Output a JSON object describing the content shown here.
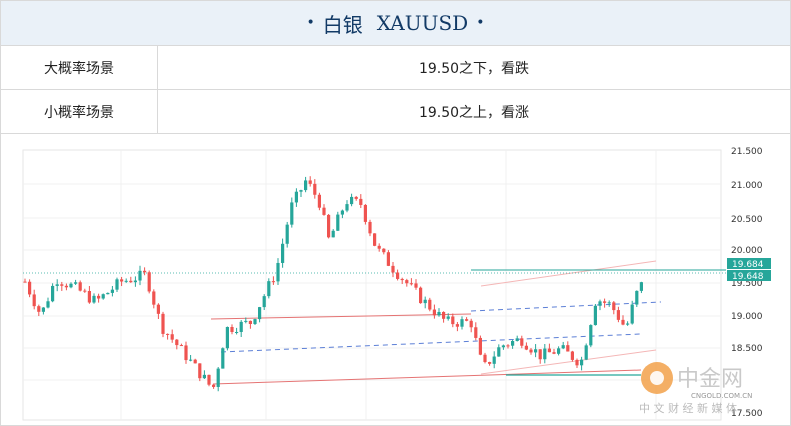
{
  "title": {
    "name": "白银",
    "symbol": "XAUUSD"
  },
  "scenarios": [
    {
      "label": "大概率场景",
      "value": "19.50之下，看跌"
    },
    {
      "label": "小概率场景",
      "value": "19.50之上，看涨"
    }
  ],
  "chart_data": {
    "type": "candlestick",
    "ylim": [
      17.5,
      21.5
    ],
    "y_ticks": [
      "21.500",
      "21.000",
      "20.500",
      "20.000",
      "19.500",
      "19.000",
      "18.500",
      "17.500"
    ],
    "price_tags": [
      "19.684",
      "19.648"
    ],
    "colors": {
      "up": "#26a69a",
      "down": "#ef5350",
      "tag": "#26a69a"
    }
  },
  "watermark": {
    "brand": "中金网",
    "domain": "CNGOLD.COM.CN",
    "tagline": "中 文 财 经 新 媒 体"
  }
}
